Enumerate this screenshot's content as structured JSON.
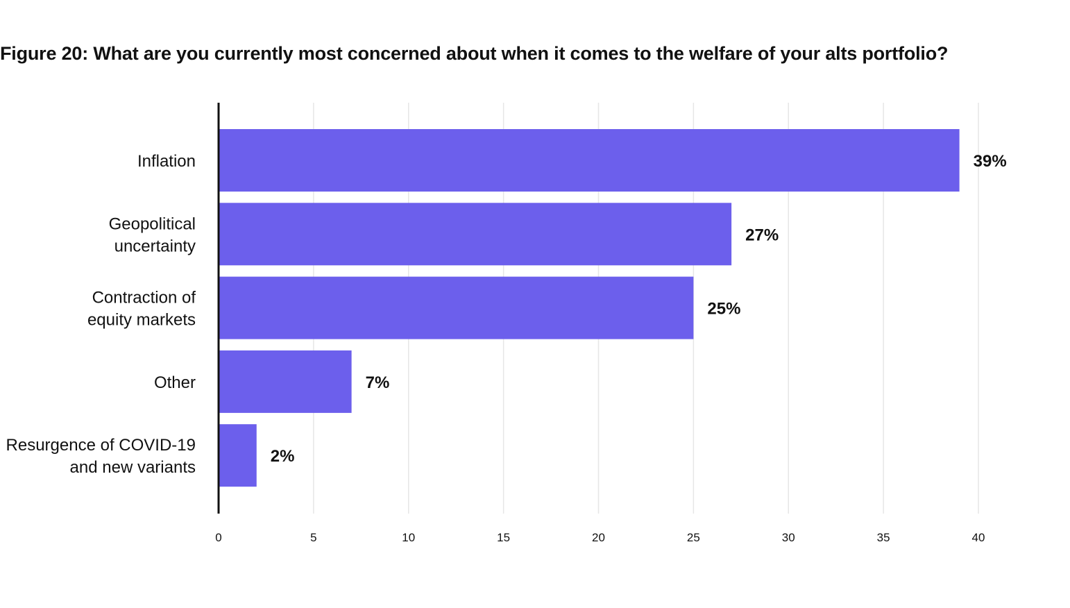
{
  "chart_data": {
    "type": "bar",
    "orientation": "horizontal",
    "title": "Figure 20: What are you currently most concerned about when it comes to the welfare of your alts portfolio?",
    "categories": [
      [
        "Inflation"
      ],
      [
        "Geopolitical",
        "uncertainty"
      ],
      [
        "Contraction of",
        "equity markets"
      ],
      [
        "Other"
      ],
      [
        "Resurgence of COVID-19",
        "and new variants"
      ]
    ],
    "values": [
      39,
      27,
      25,
      7,
      2
    ],
    "value_labels": [
      "39%",
      "27%",
      "25%",
      "7%",
      "2%"
    ],
    "xlim": [
      0,
      40
    ],
    "x_ticks": [
      0,
      5,
      10,
      15,
      20,
      25,
      30,
      35,
      40
    ],
    "grid": "vertical",
    "bar_color": "#6c5fec",
    "grid_color": "#e6e6e6",
    "axis_color": "#111111"
  }
}
